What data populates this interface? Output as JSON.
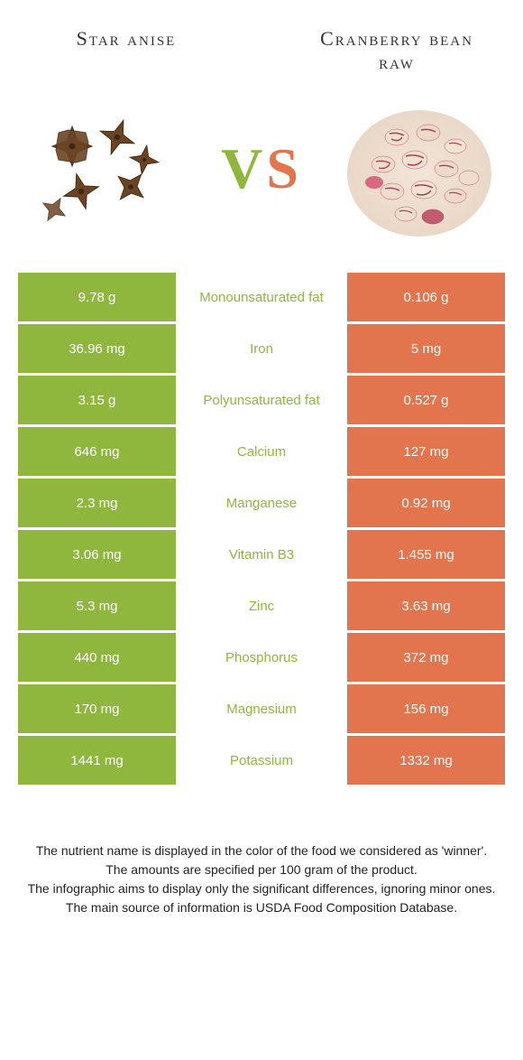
{
  "food_left": {
    "name": "Star anise"
  },
  "food_right": {
    "name": "Cranberry bean raw"
  },
  "vs": {
    "v": "V",
    "s": "S"
  },
  "colors": {
    "left_bg": "#8fb73e",
    "right_bg": "#e2744e",
    "mid_text_winner_left": "#8fb73e",
    "mid_text_winner_right": "#e2744e"
  },
  "rows": [
    {
      "left": "9.78 g",
      "mid": "Monounsaturated fat",
      "right": "0.106 g",
      "winner": "left"
    },
    {
      "left": "36.96 mg",
      "mid": "Iron",
      "right": "5 mg",
      "winner": "left"
    },
    {
      "left": "3.15 g",
      "mid": "Polyunsaturated fat",
      "right": "0.527 g",
      "winner": "left"
    },
    {
      "left": "646 mg",
      "mid": "Calcium",
      "right": "127 mg",
      "winner": "left"
    },
    {
      "left": "2.3 mg",
      "mid": "Manganese",
      "right": "0.92 mg",
      "winner": "left"
    },
    {
      "left": "3.06 mg",
      "mid": "Vitamin B3",
      "right": "1.455 mg",
      "winner": "left"
    },
    {
      "left": "5.3 mg",
      "mid": "Zinc",
      "right": "3.63 mg",
      "winner": "left"
    },
    {
      "left": "440 mg",
      "mid": "Phosphorus",
      "right": "372 mg",
      "winner": "left"
    },
    {
      "left": "170 mg",
      "mid": "Magnesium",
      "right": "156 mg",
      "winner": "left"
    },
    {
      "left": "1441 mg",
      "mid": "Potassium",
      "right": "1332 mg",
      "winner": "left"
    }
  ],
  "footer": {
    "line1": "The nutrient name is displayed in the color of the food we considered as 'winner'.",
    "line2": "The amounts are specified per 100 gram of the product.",
    "line3": "The infographic aims to display only the significant differences, ignoring minor ones.",
    "line4": "The main source of information is USDA Food Composition Database."
  }
}
